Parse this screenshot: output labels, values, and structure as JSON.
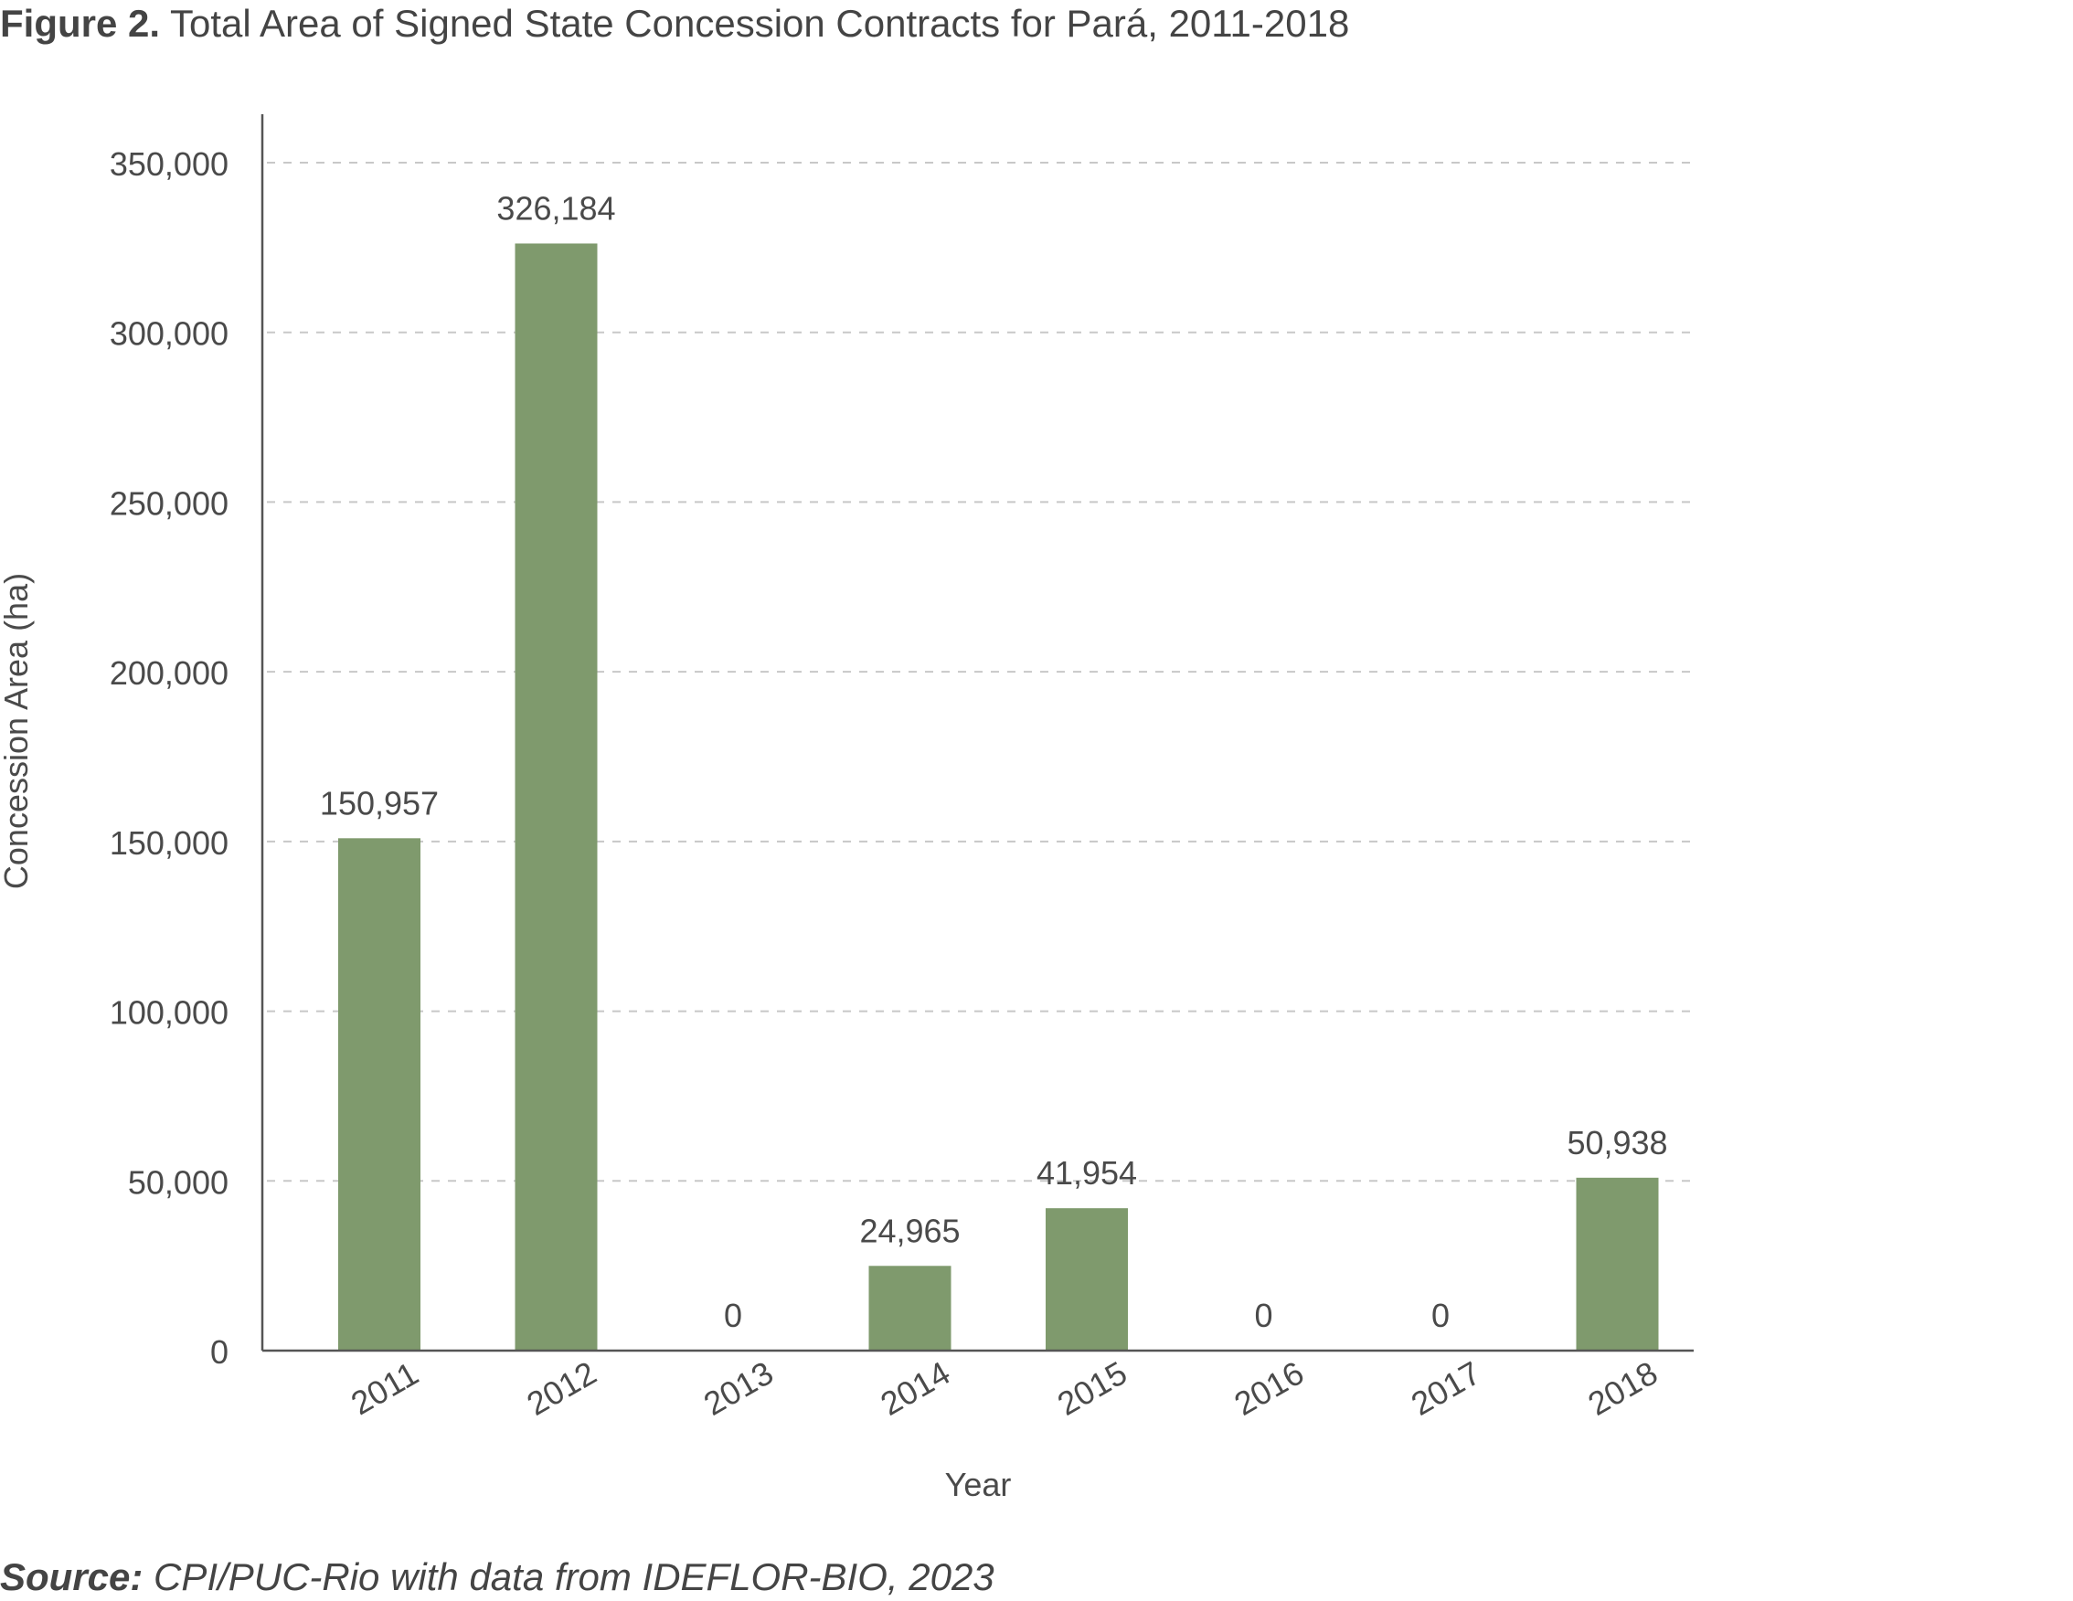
{
  "figure": {
    "label": "Figure 2.",
    "title": "Total Area of Signed State Concession Contracts for Pará, 2011-2018"
  },
  "source": {
    "label": "Source:",
    "text": "CPI/PUC-Rio with data from IDEFLOR-BIO, 2023"
  },
  "colors": {
    "bar": "#7f9a6d",
    "grid": "#c8c8c8",
    "axis": "#555555"
  },
  "chart_data": {
    "type": "bar",
    "categories": [
      "2011",
      "2012",
      "2013",
      "2014",
      "2015",
      "2016",
      "2017",
      "2018"
    ],
    "values": [
      150957,
      326184,
      0,
      24965,
      41954,
      0,
      0,
      50938
    ],
    "data_labels": [
      "150,957",
      "326,184",
      "0",
      "24,965",
      "41,954",
      "0",
      "0",
      "50,938"
    ],
    "xlabel": "Year",
    "ylabel": "Concession Area (ha)",
    "ylim": [
      0,
      350000
    ],
    "yticks": [
      0,
      50000,
      100000,
      150000,
      200000,
      250000,
      300000,
      350000
    ],
    "ytick_labels": [
      "0",
      "50,000",
      "100,000",
      "150,000",
      "200,000",
      "250,000",
      "300,000",
      "350,000"
    ],
    "grid": "horizontal dashed",
    "legend": "none"
  }
}
